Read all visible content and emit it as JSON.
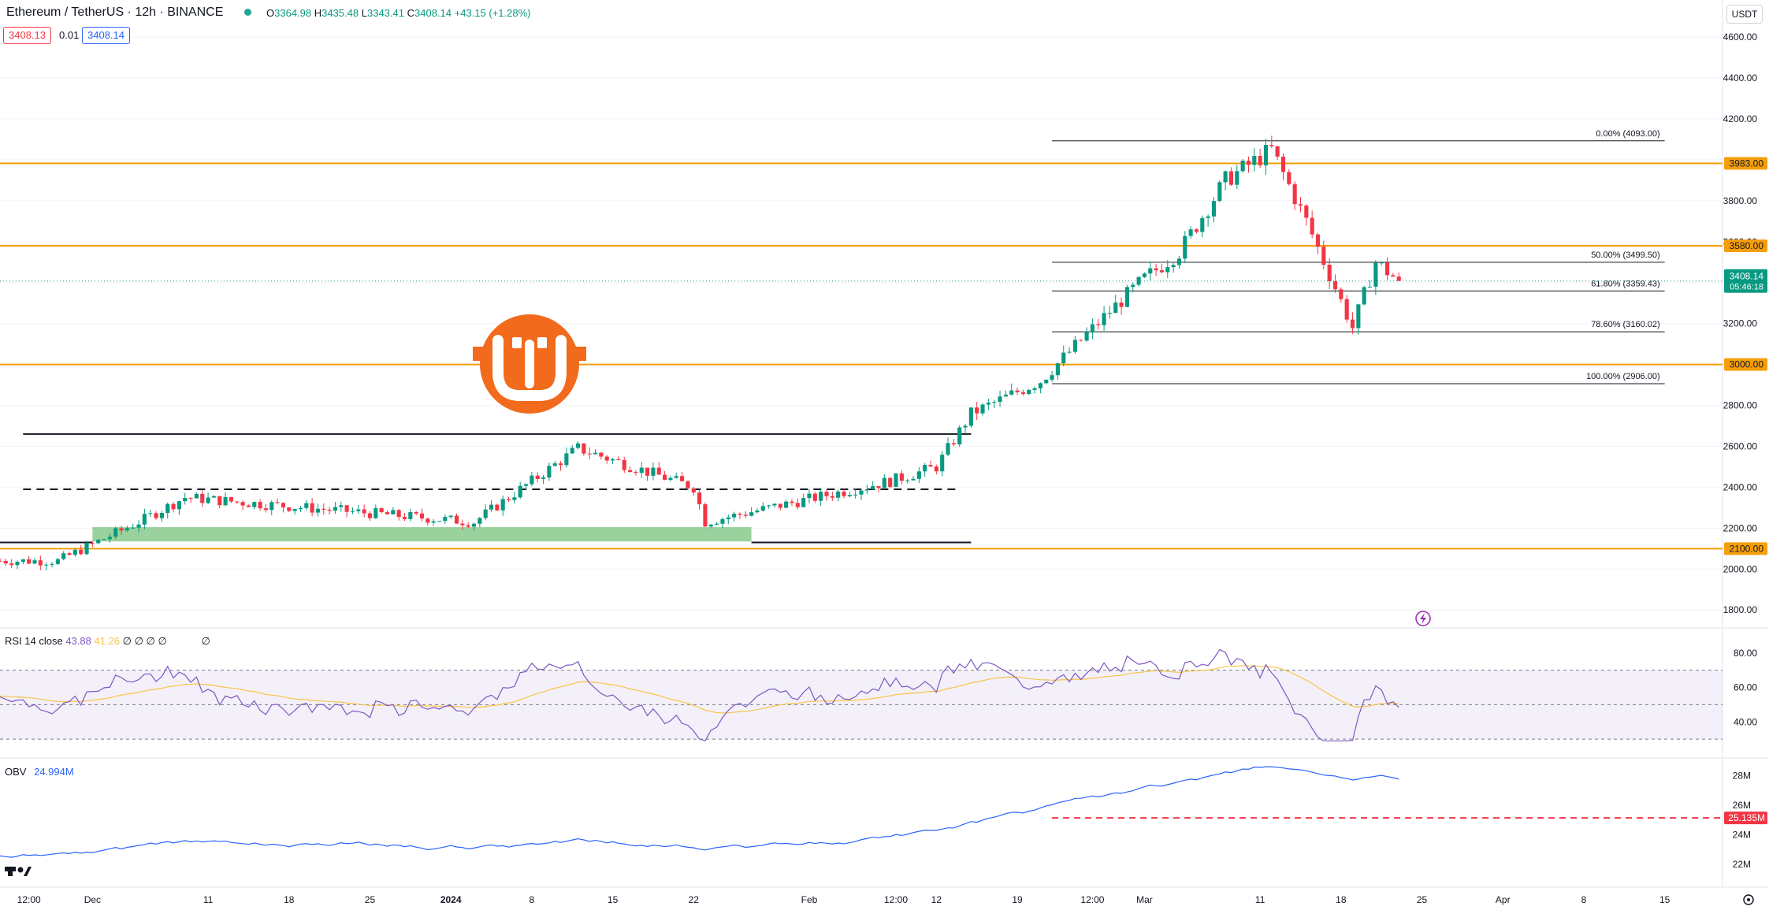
{
  "header": {
    "symbol_title": "Ethereum / TetherUS · 12h · BINANCE",
    "open_key": "O",
    "open": "3364.98",
    "high_key": "H",
    "high": "3435.48",
    "low_key": "L",
    "low": "3343.41",
    "close_key": "C",
    "close": "3408.14",
    "change": "+43.15 (+1.28%)",
    "bid": "3408.13",
    "spread": "0.01",
    "ask": "3408.14",
    "currency": "USDT"
  },
  "price_axis": {
    "ticks": [
      "4600.00",
      "4400.00",
      "4200.00",
      "3800.00",
      "3600.00",
      "3200.00",
      "2800.00",
      "2600.00",
      "2400.00",
      "2200.00",
      "2000.00",
      "1800.00"
    ],
    "tick_values": [
      4600,
      4400,
      4200,
      3800,
      3600,
      3200,
      2800,
      2600,
      2400,
      2200,
      2000,
      1800
    ],
    "levels": [
      {
        "label": "3983.00",
        "value": 3983
      },
      {
        "label": "3580.00",
        "value": 3580
      },
      {
        "label": "3000.00",
        "value": 3000
      },
      {
        "label": "2100.00",
        "value": 2100
      }
    ],
    "last_price": "3408.14",
    "countdown": "05:46:18"
  },
  "fib_levels": [
    {
      "label": "0.00% (4093.00)",
      "value": 4093
    },
    {
      "label": "50.00% (3499.50)",
      "value": 3499.5
    },
    {
      "label": "61.80% (3359.43)",
      "value": 3359.43
    },
    {
      "label": "78.60% (3160.02)",
      "value": 3160.02
    },
    {
      "label": "100.00% (2906.00)",
      "value": 2906
    }
  ],
  "rsi": {
    "title": "RSI 14 close",
    "value": "43.88",
    "ma_value": "41.26",
    "placeholders": "∅ ∅ ∅ ∅",
    "placeholder2": "∅",
    "ticks": [
      "80.00",
      "60.00",
      "40.00"
    ],
    "tick_values": [
      80,
      60,
      40
    ]
  },
  "obv": {
    "title": "OBV",
    "value": "24.994M",
    "ticks": [
      "28M",
      "26M",
      "24M",
      "22M"
    ],
    "tick_values": [
      28,
      26,
      24,
      22
    ],
    "last": "25.135M"
  },
  "time_axis": {
    "labels": [
      "12:00",
      "Dec",
      "11",
      "18",
      "25",
      "2024",
      "8",
      "15",
      "22",
      "Feb",
      "12:00",
      "12",
      "19",
      "12:00",
      "Mar",
      "11",
      "18",
      "25",
      "Apr",
      "8",
      "15"
    ]
  },
  "colors": {
    "up": "#089981",
    "down": "#f23645",
    "level": "#f59e0b",
    "rsi": "#7e57c2",
    "rsi_ma": "#f7c548",
    "obv": "#2962ff",
    "logo": "#f26a1b"
  },
  "icons": {
    "logo": "exchange-logo-icon",
    "flash": "lightning-icon",
    "settings": "gear-icon",
    "brand": "tradingview-logo-icon"
  },
  "chart_data": {
    "type": "candlestick",
    "symbol": "Ethereum / TetherUS",
    "interval": "12h",
    "x_range": [
      "2023-11-23",
      "2024-04-20"
    ],
    "y_range": [
      1720,
      4720
    ],
    "key_points": [
      {
        "date": "2023-11-23",
        "price": 2040
      },
      {
        "date": "2023-11-28",
        "price": 2040
      },
      {
        "date": "2023-12-05",
        "price": 2230
      },
      {
        "date": "2023-12-09",
        "price": 2350
      },
      {
        "date": "2024-01-03",
        "price": 2230
      },
      {
        "date": "2024-01-12",
        "price": 2590
      },
      {
        "date": "2024-01-22",
        "price": 2400
      },
      {
        "date": "2024-01-23",
        "price": 2230
      },
      {
        "date": "2024-02-08",
        "price": 2430
      },
      {
        "date": "2024-02-12",
        "price": 2500
      },
      {
        "date": "2024-02-15",
        "price": 2760
      },
      {
        "date": "2024-02-21",
        "price": 2920
      },
      {
        "date": "2024-02-27",
        "price": 3260
      },
      {
        "date": "2024-03-01",
        "price": 3420
      },
      {
        "date": "2024-03-04",
        "price": 3550
      },
      {
        "date": "2024-03-08",
        "price": 3900
      },
      {
        "date": "2024-03-12",
        "price": 4050
      },
      {
        "date": "2024-03-15",
        "price": 3700
      },
      {
        "date": "2024-03-19",
        "price": 3180
      },
      {
        "date": "2024-03-21",
        "price": 3500
      },
      {
        "date": "2024-03-23",
        "price": 3408.14
      }
    ],
    "resistance": [
      2660
    ],
    "range_mid": [
      2390
    ],
    "support": [
      2130
    ]
  }
}
